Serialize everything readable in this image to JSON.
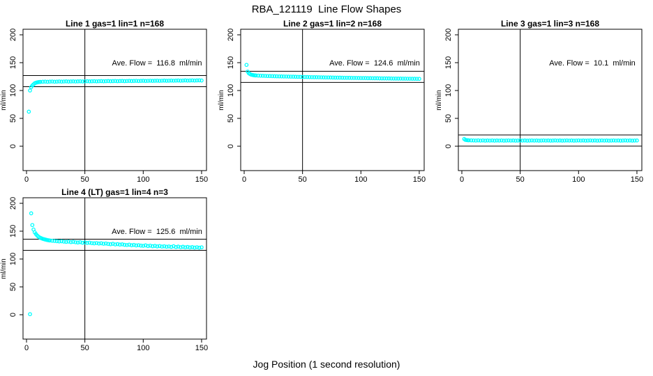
{
  "page": {
    "title": "RBA_121119  Line Flow Shapes",
    "xlabel": "Jog Position (1 second resolution)",
    "point_color": "#00FFFF",
    "axis_color": "#000000",
    "background_color": "#FFFFFF"
  },
  "chart_data": [
    {
      "type": "scatter",
      "title": "Line 1 gas=1 lin=1 n=168",
      "annotation": "Ave. Flow =  116.8  ml/min",
      "ave_flow_ml_min": 116.8,
      "ylabel": "ml/min",
      "xlim": [
        0,
        150
      ],
      "ylim": [
        0,
        200
      ],
      "xticks": [
        0,
        50,
        100,
        150
      ],
      "yticks": [
        0,
        50,
        100,
        150,
        200
      ],
      "vline_x": 50,
      "hlines": [
        126.8,
        106.8
      ],
      "points": [
        [
          2,
          62
        ],
        [
          3,
          100
        ],
        [
          4,
          106
        ],
        [
          5,
          109
        ],
        [
          6,
          111
        ],
        [
          7,
          113
        ],
        [
          8,
          114
        ],
        [
          9,
          114.5
        ],
        [
          10,
          115
        ],
        [
          11,
          115.3
        ],
        [
          12,
          115.5
        ],
        [
          14,
          115.8
        ],
        [
          16,
          116
        ],
        [
          18,
          115.7
        ],
        [
          20,
          116
        ],
        [
          22,
          116.2
        ],
        [
          24,
          115.8
        ],
        [
          26,
          116
        ],
        [
          28,
          116.3
        ],
        [
          30,
          116
        ],
        [
          32,
          116.2
        ],
        [
          34,
          116.4
        ],
        [
          36,
          116.1
        ],
        [
          38,
          116.3
        ],
        [
          40,
          116.5
        ],
        [
          42,
          116.2
        ],
        [
          44,
          116.4
        ],
        [
          46,
          116.6
        ],
        [
          48,
          116.3
        ],
        [
          50,
          116.5
        ],
        [
          52,
          116.7
        ],
        [
          54,
          116.4
        ],
        [
          56,
          116.6
        ],
        [
          58,
          116.8
        ],
        [
          60,
          116.5
        ],
        [
          62,
          116.7
        ],
        [
          64,
          116.9
        ],
        [
          66,
          116.6
        ],
        [
          68,
          116.8
        ],
        [
          70,
          117
        ],
        [
          72,
          116.7
        ],
        [
          74,
          116.9
        ],
        [
          76,
          117.1
        ],
        [
          78,
          116.8
        ],
        [
          80,
          117
        ],
        [
          82,
          117.2
        ],
        [
          84,
          116.9
        ],
        [
          86,
          117.1
        ],
        [
          88,
          117.3
        ],
        [
          90,
          117
        ],
        [
          92,
          117.2
        ],
        [
          94,
          117.4
        ],
        [
          96,
          117.1
        ],
        [
          98,
          117.3
        ],
        [
          100,
          117.5
        ],
        [
          102,
          117.2
        ],
        [
          104,
          117.4
        ],
        [
          106,
          117.6
        ],
        [
          108,
          117.3
        ],
        [
          110,
          117.5
        ],
        [
          112,
          117.7
        ],
        [
          114,
          117.4
        ],
        [
          116,
          117.6
        ],
        [
          118,
          117.8
        ],
        [
          120,
          117.5
        ],
        [
          122,
          117.7
        ],
        [
          124,
          117.9
        ],
        [
          126,
          117.6
        ],
        [
          128,
          117.8
        ],
        [
          130,
          118
        ],
        [
          132,
          117.7
        ],
        [
          134,
          117.9
        ],
        [
          136,
          118.1
        ],
        [
          138,
          117.8
        ],
        [
          140,
          118
        ],
        [
          142,
          118.2
        ],
        [
          144,
          117.9
        ],
        [
          146,
          118.1
        ],
        [
          148,
          118.3
        ],
        [
          150,
          118
        ]
      ]
    },
    {
      "type": "scatter",
      "title": "Line 2 gas=1 lin=2 n=168",
      "annotation": "Ave. Flow =  124.6  ml/min",
      "ave_flow_ml_min": 124.6,
      "ylabel": "ml/min",
      "xlim": [
        0,
        150
      ],
      "ylim": [
        0,
        200
      ],
      "xticks": [
        0,
        50,
        100,
        150
      ],
      "yticks": [
        0,
        50,
        100,
        150,
        200
      ],
      "vline_x": 50,
      "hlines": [
        134.6,
        114.6
      ],
      "points": [
        [
          2,
          146
        ],
        [
          3,
          134
        ],
        [
          4,
          131
        ],
        [
          5,
          129.5
        ],
        [
          6,
          128.5
        ],
        [
          7,
          128
        ],
        [
          8,
          127.5
        ],
        [
          9,
          127.2
        ],
        [
          10,
          127
        ],
        [
          12,
          126.8
        ],
        [
          14,
          126.6
        ],
        [
          16,
          126.4
        ],
        [
          18,
          126.2
        ],
        [
          20,
          126
        ],
        [
          22,
          125.9
        ],
        [
          24,
          125.8
        ],
        [
          26,
          125.6
        ],
        [
          28,
          125.5
        ],
        [
          30,
          125.4
        ],
        [
          32,
          125.3
        ],
        [
          34,
          125.2
        ],
        [
          36,
          125.1
        ],
        [
          38,
          125
        ],
        [
          40,
          124.9
        ],
        [
          42,
          124.8
        ],
        [
          44,
          124.7
        ],
        [
          46,
          124.6
        ],
        [
          48,
          124.5
        ],
        [
          50,
          124.4
        ],
        [
          52,
          124.3
        ],
        [
          54,
          124.2
        ],
        [
          56,
          124.1
        ],
        [
          58,
          124
        ],
        [
          60,
          123.9
        ],
        [
          62,
          123.9
        ],
        [
          64,
          123.8
        ],
        [
          66,
          123.7
        ],
        [
          68,
          123.6
        ],
        [
          70,
          123.5
        ],
        [
          72,
          123.5
        ],
        [
          74,
          123.4
        ],
        [
          76,
          123.3
        ],
        [
          78,
          123.2
        ],
        [
          80,
          123.2
        ],
        [
          82,
          123.1
        ],
        [
          84,
          123
        ],
        [
          86,
          122.9
        ],
        [
          88,
          122.9
        ],
        [
          90,
          122.8
        ],
        [
          92,
          122.7
        ],
        [
          94,
          122.6
        ],
        [
          96,
          122.6
        ],
        [
          98,
          122.5
        ],
        [
          100,
          122.4
        ],
        [
          102,
          122.4
        ],
        [
          104,
          122.3
        ],
        [
          106,
          122.2
        ],
        [
          108,
          122.2
        ],
        [
          110,
          122.1
        ],
        [
          112,
          122
        ],
        [
          114,
          122
        ],
        [
          116,
          121.9
        ],
        [
          118,
          121.8
        ],
        [
          120,
          121.8
        ],
        [
          122,
          121.7
        ],
        [
          124,
          121.7
        ],
        [
          126,
          121.6
        ],
        [
          128,
          121.5
        ],
        [
          130,
          121.5
        ],
        [
          132,
          121.4
        ],
        [
          134,
          121.4
        ],
        [
          136,
          121.3
        ],
        [
          138,
          121.3
        ],
        [
          140,
          121.2
        ],
        [
          142,
          121.2
        ],
        [
          144,
          121.1
        ],
        [
          146,
          121.1
        ],
        [
          148,
          121
        ],
        [
          150,
          121
        ]
      ]
    },
    {
      "type": "scatter",
      "title": "Line 3 gas=1 lin=3 n=168",
      "annotation": "Ave. Flow =  10.1  ml/min",
      "ave_flow_ml_min": 10.1,
      "ylabel": "ml/min",
      "xlim": [
        0,
        150
      ],
      "ylim": [
        0,
        200
      ],
      "xticks": [
        0,
        50,
        100,
        150
      ],
      "yticks": [
        0,
        50,
        100,
        150,
        200
      ],
      "vline_x": 50,
      "hlines": [
        20.1,
        0.1
      ],
      "points": [
        [
          2,
          13
        ],
        [
          3,
          11.5
        ],
        [
          4,
          11
        ],
        [
          5,
          10.8
        ],
        [
          6,
          10.6
        ],
        [
          8,
          10.5
        ],
        [
          10,
          10.4
        ],
        [
          12,
          10.2
        ],
        [
          14,
          10.5
        ],
        [
          16,
          10.1
        ],
        [
          18,
          10.4
        ],
        [
          20,
          10
        ],
        [
          22,
          10.3
        ],
        [
          24,
          10.1
        ],
        [
          26,
          10.4
        ],
        [
          28,
          10
        ],
        [
          30,
          10.3
        ],
        [
          32,
          10.1
        ],
        [
          34,
          10.4
        ],
        [
          36,
          10
        ],
        [
          38,
          10.2
        ],
        [
          40,
          10.4
        ],
        [
          42,
          10.1
        ],
        [
          44,
          10.3
        ],
        [
          46,
          10
        ],
        [
          48,
          10.2
        ],
        [
          50,
          10.4
        ],
        [
          52,
          10.1
        ],
        [
          54,
          10.3
        ],
        [
          56,
          10
        ],
        [
          58,
          10.2
        ],
        [
          60,
          10.4
        ],
        [
          62,
          10.1
        ],
        [
          64,
          10.3
        ],
        [
          66,
          10
        ],
        [
          68,
          10.2
        ],
        [
          70,
          10.4
        ],
        [
          72,
          10.1
        ],
        [
          74,
          10.3
        ],
        [
          76,
          10
        ],
        [
          78,
          10.2
        ],
        [
          80,
          10.4
        ],
        [
          82,
          10.1
        ],
        [
          84,
          10.3
        ],
        [
          86,
          10
        ],
        [
          88,
          10.2
        ],
        [
          90,
          10.4
        ],
        [
          92,
          10.1
        ],
        [
          94,
          10.3
        ],
        [
          96,
          10
        ],
        [
          98,
          10.2
        ],
        [
          100,
          10.4
        ],
        [
          102,
          10.1
        ],
        [
          104,
          10.3
        ],
        [
          106,
          10
        ],
        [
          108,
          10.2
        ],
        [
          110,
          10.4
        ],
        [
          112,
          10.1
        ],
        [
          114,
          10.3
        ],
        [
          116,
          10
        ],
        [
          118,
          10.2
        ],
        [
          120,
          10.4
        ],
        [
          122,
          10.1
        ],
        [
          124,
          10.3
        ],
        [
          126,
          10
        ],
        [
          128,
          10.2
        ],
        [
          130,
          10.4
        ],
        [
          132,
          10.1
        ],
        [
          134,
          10.3
        ],
        [
          136,
          10
        ],
        [
          138,
          10.2
        ],
        [
          140,
          10.4
        ],
        [
          142,
          10.1
        ],
        [
          144,
          10.3
        ],
        [
          146,
          10
        ],
        [
          148,
          10.2
        ],
        [
          150,
          10.3
        ]
      ]
    },
    {
      "type": "scatter",
      "title": "Line 4 (LT) gas=1 lin=4 n=3",
      "annotation": "Ave. Flow =  125.6  ml/min",
      "ave_flow_ml_min": 125.6,
      "ylabel": "ml/min",
      "xlim": [
        0,
        150
      ],
      "ylim": [
        0,
        200
      ],
      "xticks": [
        0,
        50,
        100,
        150
      ],
      "yticks": [
        0,
        50,
        100,
        150,
        200
      ],
      "vline_x": 50,
      "hlines": [
        135.6,
        115.6
      ],
      "points": [
        [
          3,
          1
        ],
        [
          4,
          182
        ],
        [
          5,
          161
        ],
        [
          6,
          153
        ],
        [
          7,
          148
        ],
        [
          8,
          145
        ],
        [
          9,
          142.5
        ],
        [
          10,
          140.5
        ],
        [
          11,
          139
        ],
        [
          12,
          138
        ],
        [
          13,
          137
        ],
        [
          14,
          136.2
        ],
        [
          15,
          135.6
        ],
        [
          16,
          135
        ],
        [
          17,
          134.5
        ],
        [
          18,
          134
        ],
        [
          19,
          133.6
        ],
        [
          20,
          133.3
        ],
        [
          22,
          132.8
        ],
        [
          24,
          132.4
        ],
        [
          26,
          132
        ],
        [
          28,
          131.6
        ],
        [
          30,
          131.9
        ],
        [
          32,
          131.2
        ],
        [
          34,
          130.8
        ],
        [
          36,
          131.3
        ],
        [
          38,
          130.4
        ],
        [
          40,
          130.9
        ],
        [
          42,
          130.1
        ],
        [
          44,
          129.7
        ],
        [
          46,
          130.3
        ],
        [
          48,
          129.3
        ],
        [
          50,
          129.8
        ],
        [
          52,
          128.9
        ],
        [
          54,
          129.4
        ],
        [
          56,
          128.5
        ],
        [
          58,
          128.1
        ],
        [
          60,
          128.7
        ],
        [
          62,
          127.8
        ],
        [
          64,
          128.3
        ],
        [
          66,
          127.4
        ],
        [
          68,
          127.9
        ],
        [
          70,
          127.1
        ],
        [
          72,
          126.6
        ],
        [
          74,
          127.3
        ],
        [
          76,
          126.2
        ],
        [
          78,
          126.8
        ],
        [
          80,
          125.9
        ],
        [
          82,
          126.4
        ],
        [
          84,
          125.5
        ],
        [
          86,
          125.1
        ],
        [
          88,
          125.8
        ],
        [
          90,
          124.7
        ],
        [
          92,
          125.3
        ],
        [
          94,
          124.4
        ],
        [
          96,
          124.9
        ],
        [
          98,
          124.1
        ],
        [
          100,
          123.7
        ],
        [
          102,
          124.5
        ],
        [
          104,
          123.3
        ],
        [
          106,
          124
        ],
        [
          108,
          123
        ],
        [
          110,
          123.6
        ],
        [
          112,
          122.7
        ],
        [
          114,
          123.3
        ],
        [
          116,
          122.4
        ],
        [
          118,
          122.9
        ],
        [
          120,
          122.1
        ],
        [
          122,
          122.6
        ],
        [
          124,
          121.8
        ],
        [
          126,
          123
        ],
        [
          128,
          121.5
        ],
        [
          130,
          122.3
        ],
        [
          132,
          121.2
        ],
        [
          134,
          122
        ],
        [
          136,
          121
        ],
        [
          138,
          121.7
        ],
        [
          140,
          120.8
        ],
        [
          142,
          121.4
        ],
        [
          144,
          120.5
        ],
        [
          146,
          121.2
        ],
        [
          148,
          120.3
        ],
        [
          150,
          121
        ]
      ]
    }
  ]
}
